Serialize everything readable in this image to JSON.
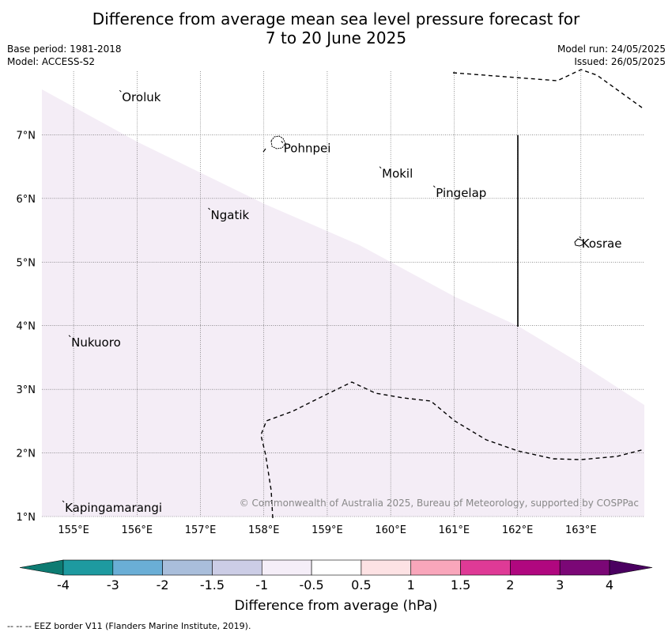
{
  "header": {
    "title_line1": "Difference from average mean sea level pressure forecast for",
    "title_line2": "7 to 20 June 2025",
    "base_period": "Base period: 1981-2018",
    "model": "Model: ACCESS-S2",
    "model_run": "Model run: 24/05/2025",
    "issued": "Issued: 26/05/2025"
  },
  "map": {
    "lon_range": [
      154.5,
      164.0
    ],
    "lat_range": [
      1.0,
      8.0
    ],
    "lon_ticks": [
      "155°E",
      "156°E",
      "157°E",
      "158°E",
      "159°E",
      "160°E",
      "161°E",
      "162°E",
      "163°E"
    ],
    "lat_ticks": [
      "1°N",
      "2°N",
      "3°N",
      "4°N",
      "5°N",
      "6°N",
      "7°N"
    ],
    "places": [
      {
        "name": "Oroluk",
        "lon": 155.75,
        "lat": 7.6
      },
      {
        "name": "Pohnpei",
        "lon": 158.3,
        "lat": 6.8
      },
      {
        "name": "Mokil",
        "lon": 159.85,
        "lat": 6.4
      },
      {
        "name": "Pingelap",
        "lon": 160.7,
        "lat": 6.1
      },
      {
        "name": "Ngatik",
        "lon": 157.15,
        "lat": 5.75
      },
      {
        "name": "Kosrae",
        "lon": 163.0,
        "lat": 5.3
      },
      {
        "name": "Nukuoro",
        "lon": 154.95,
        "lat": 3.75
      },
      {
        "name": "Kapingamarangi",
        "lon": 154.85,
        "lat": 1.15
      }
    ],
    "fill_color": "#f4edf6",
    "copyright": "© Commonwealth of Australia 2025, Bureau of Meteorology, supported by COSPPac"
  },
  "colorbar": {
    "colors": [
      "#0d7b72",
      "#1e9aa0",
      "#6aaed6",
      "#a9bedb",
      "#cccde6",
      "#f5eef8",
      "#ffffff",
      "#fde2e4",
      "#f9a6bb",
      "#df3a96",
      "#b0077f",
      "#7b0776",
      "#4a0060"
    ],
    "tick_labels": [
      "-4",
      "-3",
      "-2",
      "-1.5",
      "-1",
      "-0.5",
      "0.5",
      "1",
      "1.5",
      "2",
      "3",
      "4"
    ],
    "label": "Difference from average (hPa)"
  },
  "footer": {
    "legend": "--  --  -- EEZ border V11 (Flanders Marine Institute, 2019)."
  }
}
